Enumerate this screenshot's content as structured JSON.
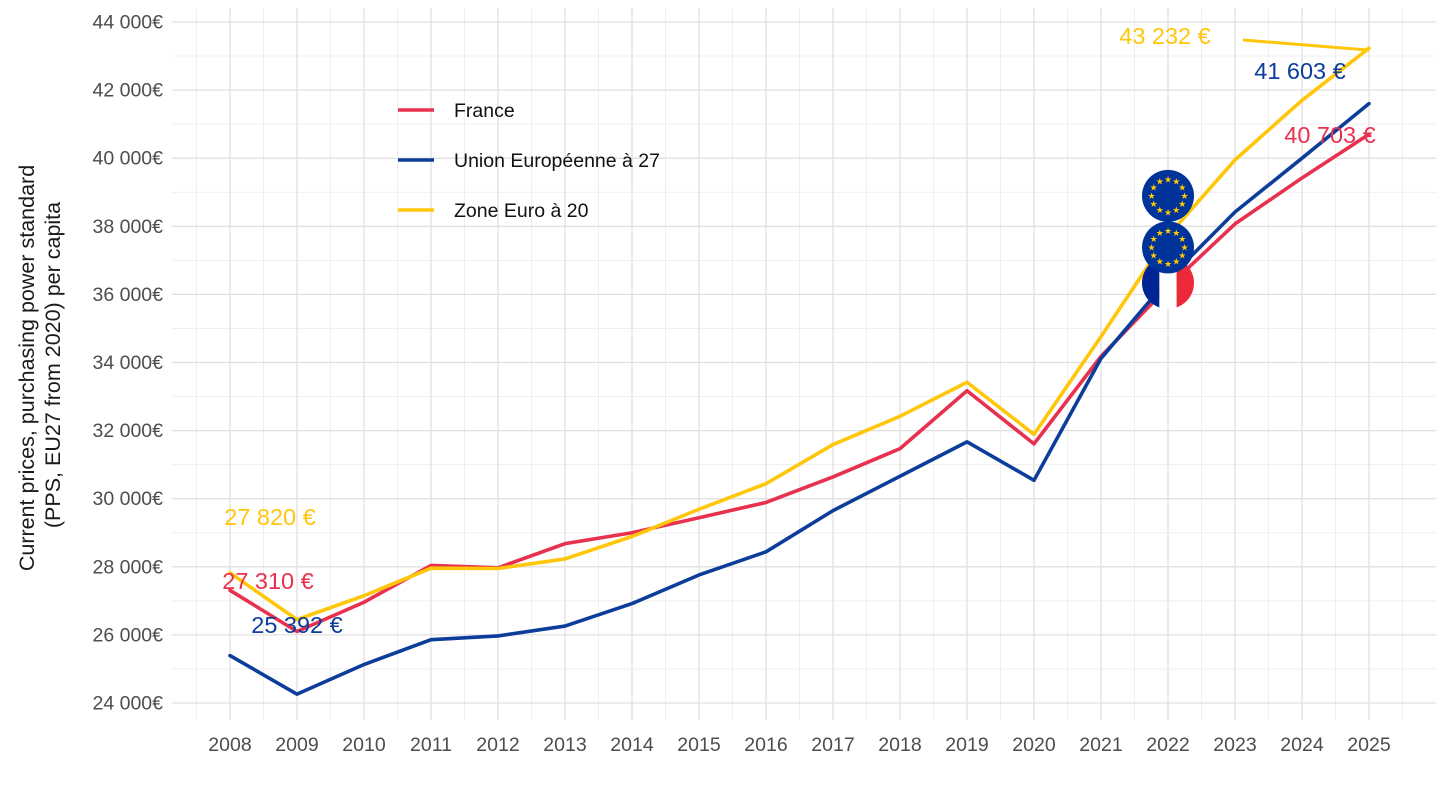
{
  "chart_data": {
    "type": "line",
    "title": "",
    "ylabel_line1": "Current prices, purchasing power standard",
    "ylabel_line2": "(PPS, EU27 from 2020) per capita",
    "xlabel": "",
    "x": [
      2008,
      2009,
      2010,
      2011,
      2012,
      2013,
      2014,
      2015,
      2016,
      2017,
      2018,
      2019,
      2020,
      2021,
      2022,
      2023,
      2024,
      2025
    ],
    "x_tick_labels": [
      "2008",
      "2009",
      "2010",
      "2011",
      "2012",
      "2013",
      "2014",
      "2015",
      "2016",
      "2017",
      "2018",
      "2019",
      "2020",
      "2021",
      "2022",
      "2023",
      "2024",
      "2025"
    ],
    "y_ticks": [
      {
        "value": 24000,
        "label": "24 000€"
      },
      {
        "value": 26000,
        "label": "26 000€"
      },
      {
        "value": 28000,
        "label": "28 000€"
      },
      {
        "value": 30000,
        "label": "30 000€"
      },
      {
        "value": 32000,
        "label": "32 000€"
      },
      {
        "value": 34000,
        "label": "34 000€"
      },
      {
        "value": 36000,
        "label": "36 000€"
      },
      {
        "value": 38000,
        "label": "38 000€"
      },
      {
        "value": 40000,
        "label": "40 000€"
      },
      {
        "value": 42000,
        "label": "42 000€"
      },
      {
        "value": 44000,
        "label": "44 000€"
      }
    ],
    "ylim": [
      23500,
      44800
    ],
    "grid": {
      "major_color": "#e0e0e0",
      "minor_color": "#efefef",
      "background": "#ffffff"
    },
    "series": [
      {
        "name": "France",
        "color": "#e8304f",
        "values": [
          27310,
          26100,
          26960,
          28040,
          27970,
          28680,
          29000,
          29440,
          29890,
          30640,
          31470,
          33170,
          31610,
          34180,
          36220,
          38070,
          39420,
          40703
        ]
      },
      {
        "name": "Union Européenne à 27",
        "color": "#0d3d9b",
        "values": [
          25392,
          24260,
          25130,
          25860,
          25970,
          26260,
          26920,
          27760,
          28440,
          29650,
          30660,
          31670,
          30540,
          34120,
          36440,
          38420,
          40000,
          41603
        ]
      },
      {
        "name": "Zone Euro à 20",
        "color": "#ffc60a",
        "values": [
          27820,
          26450,
          27150,
          27960,
          27950,
          28230,
          28890,
          29690,
          30440,
          31590,
          32420,
          33420,
          31890,
          34760,
          37720,
          39950,
          41700,
          43232
        ]
      }
    ],
    "annotations": [
      {
        "text": "27 820 €",
        "series": "Zone Euro à 20",
        "year": 2008
      },
      {
        "text": "27 310 €",
        "series": "France",
        "year": 2008
      },
      {
        "text": "25 392 €",
        "series": "Union Européenne à 27",
        "year": 2008
      },
      {
        "text": "43 232 €",
        "series": "Zone Euro à 20",
        "year": 2025,
        "leader": true
      },
      {
        "text": "41 603 €",
        "series": "Union Européenne à 27",
        "year": 2025
      },
      {
        "text": "40 703 €",
        "series": "France",
        "year": 2025
      }
    ],
    "markers": [
      {
        "icon": "eu-flag",
        "year": 2022,
        "series": "Zone Euro à 20"
      },
      {
        "icon": "eu-flag",
        "year": 2022,
        "series": "Union Européenne à 27"
      },
      {
        "icon": "france-flag",
        "year": 2022,
        "series": "France"
      }
    ],
    "legend": {
      "position": "inside-top-left",
      "items": [
        "France",
        "Union Européenne à 27",
        "Zone Euro à 20"
      ]
    },
    "flag_colors": {
      "eu_blue": "#003399",
      "eu_star": "#ffcc00",
      "fr_blue": "#002395",
      "fr_white": "#ffffff",
      "fr_red": "#ed2939"
    },
    "text_colors": {
      "axis_tick": "#4d4d4d",
      "axis_title": "#1a1a1a",
      "legend": "#111111"
    }
  }
}
